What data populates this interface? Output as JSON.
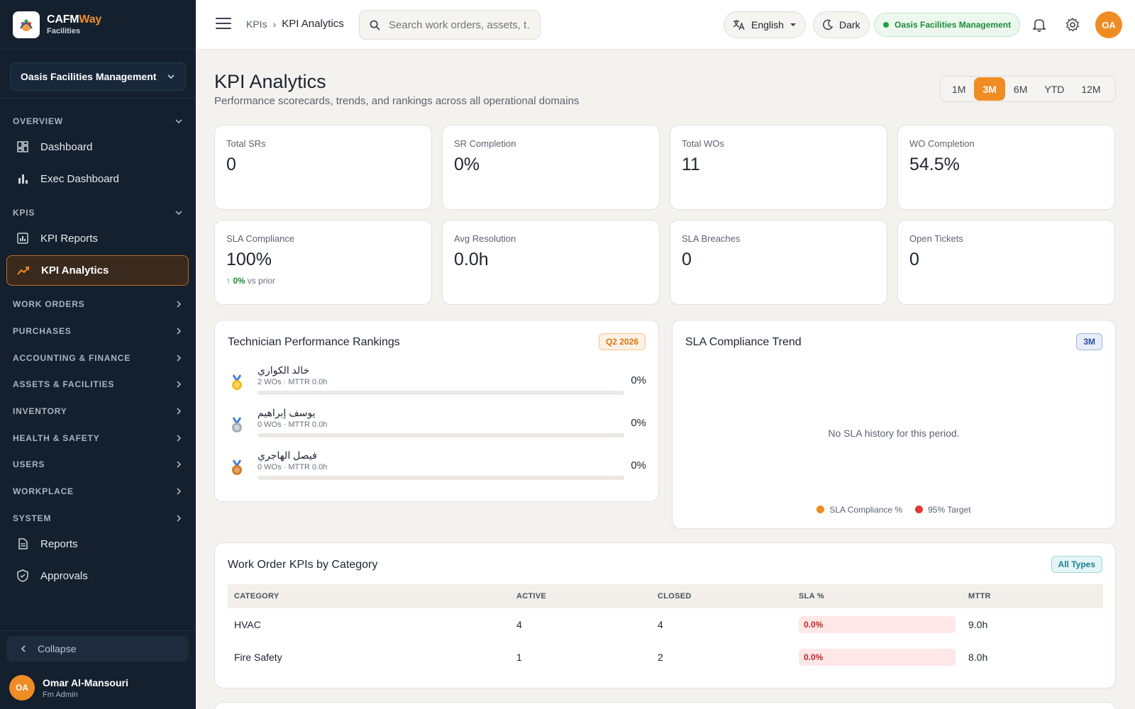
{
  "brand": {
    "name_main": "CAFM",
    "name_accent": "Way",
    "sub": "Facilities"
  },
  "sidebar": {
    "org": "Oasis Facilities Management",
    "sections": {
      "overview": "OVERVIEW",
      "kpis": "KPIS",
      "work_orders": "WORK ORDERS",
      "purchases": "PURCHASES",
      "accounting": "ACCOUNTING & FINANCE",
      "assets": "ASSETS & FACILITIES",
      "inventory": "INVENTORY",
      "health": "HEALTH & SAFETY",
      "users": "USERS",
      "workplace": "WORKPLACE",
      "system": "SYSTEM"
    },
    "items": {
      "dashboard": "Dashboard",
      "exec_dashboard": "Exec Dashboard",
      "kpi_reports": "KPI Reports",
      "kpi_analytics": "KPI Analytics",
      "reports": "Reports",
      "approvals": "Approvals"
    },
    "collapse": "Collapse",
    "user": {
      "initials": "OA",
      "name": "Omar Al-Mansouri",
      "role": "Fm Admin"
    }
  },
  "topbar": {
    "breadcrumb_parent": "KPIs",
    "breadcrumb_sep": "›",
    "breadcrumb_current": "KPI Analytics",
    "search_placeholder": "Search work orders, assets, t…",
    "language": "English",
    "theme": "Dark",
    "org": "Oasis Facilities Management",
    "avatar": "OA"
  },
  "page": {
    "title": "KPI Analytics",
    "subtitle": "Performance scorecards, trends, and rankings across all operational domains",
    "periods": [
      "1M",
      "3M",
      "6M",
      "YTD",
      "12M"
    ],
    "active_period": "3M"
  },
  "kpis": [
    {
      "label": "Total SRs",
      "value": "0"
    },
    {
      "label": "SR Completion",
      "value": "0%"
    },
    {
      "label": "Total WOs",
      "value": "11"
    },
    {
      "label": "WO Completion",
      "value": "54.5%"
    },
    {
      "label": "SLA Compliance",
      "value": "100%",
      "delta": "↑ 0%",
      "delta_note": "vs prior"
    },
    {
      "label": "Avg Resolution",
      "value": "0.0h"
    },
    {
      "label": "SLA Breaches",
      "value": "0"
    },
    {
      "label": "Open Tickets",
      "value": "0"
    }
  ],
  "rankings": {
    "title": "Technician Performance Rankings",
    "badge": "Q2 2026",
    "rows": [
      {
        "name": "خالد الكواري",
        "meta": "2 WOs · MTTR 0.0h",
        "pct": "0%",
        "progress": 0,
        "medal": "gold"
      },
      {
        "name": "يوسف إبراهيم",
        "meta": "0 WOs · MTTR 0.0h",
        "pct": "0%",
        "progress": 0,
        "medal": "silver"
      },
      {
        "name": "فيصل الهاجري",
        "meta": "0 WOs · MTTR 0.0h",
        "pct": "0%",
        "progress": 0,
        "medal": "bronze"
      }
    ]
  },
  "sla_trend": {
    "title": "SLA Compliance Trend",
    "badge": "3M",
    "empty": "No SLA history for this period.",
    "legend": [
      {
        "label": "SLA Compliance %",
        "color": "#f08c24"
      },
      {
        "label": "95% Target",
        "color": "#e53935"
      }
    ]
  },
  "wo_kpis": {
    "title": "Work Order KPIs by Category",
    "badge": "All Types",
    "columns": [
      "CATEGORY",
      "ACTIVE",
      "CLOSED",
      "SLA %",
      "MTTR"
    ],
    "rows": [
      {
        "category": "HVAC",
        "active": "4",
        "closed": "4",
        "sla": "0.0%",
        "mttr": "9.0h"
      },
      {
        "category": "Fire Safety",
        "active": "1",
        "closed": "2",
        "sla": "0.0%",
        "mttr": "8.0h"
      }
    ]
  },
  "colors": {
    "accent": "#f08c24",
    "sidebar_bg": "#14202e",
    "success": "#1d8a3a",
    "danger": "#c62828"
  },
  "icons": [
    "menu-icon",
    "search-icon",
    "translate-icon",
    "moon-icon",
    "bell-icon",
    "gear-icon",
    "dashboard-icon",
    "bar-chart-icon",
    "report-icon",
    "trend-icon",
    "document-icon",
    "shield-check-icon",
    "chevron-down-icon",
    "chevron-right-icon",
    "chevron-left-icon",
    "medal-icon"
  ]
}
